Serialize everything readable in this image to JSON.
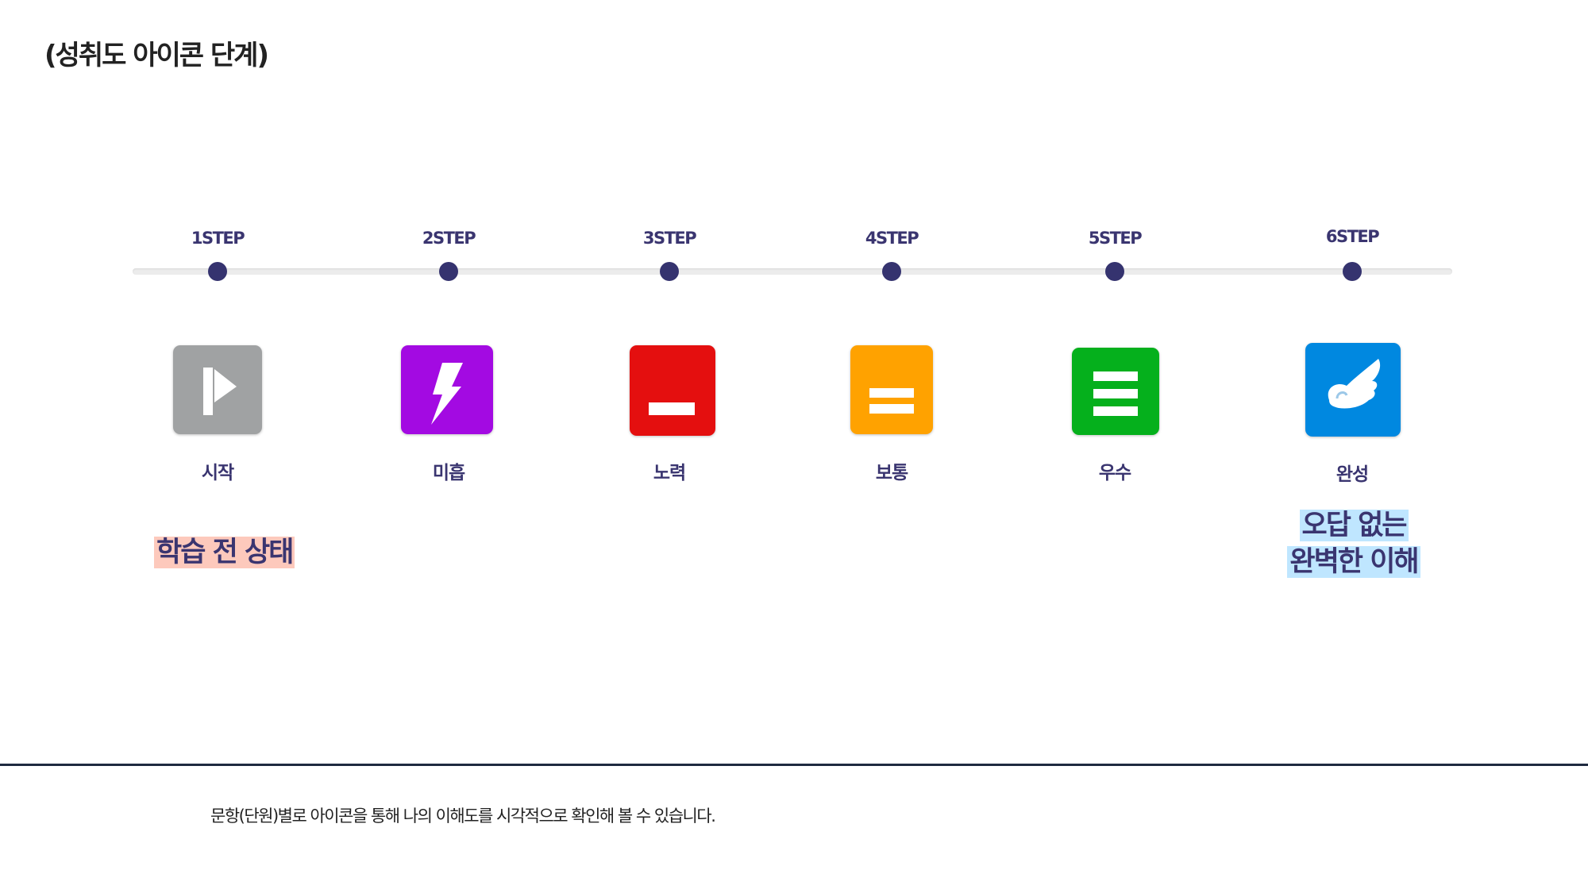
{
  "title": "(성취도 아이콘 단계)",
  "steps": [
    {
      "step": "1STEP",
      "name": "시작",
      "icon": "flag-play-icon",
      "color": "#a0a2a3"
    },
    {
      "step": "2STEP",
      "name": "미흡",
      "icon": "lightning-icon",
      "color": "#a30ae2"
    },
    {
      "step": "3STEP",
      "name": "노력",
      "icon": "single-bar-icon",
      "color": "#e40f0f"
    },
    {
      "step": "4STEP",
      "name": "보통",
      "icon": "double-bar-icon",
      "color": "#ffa200"
    },
    {
      "step": "5STEP",
      "name": "우수",
      "icon": "triple-bar-icon",
      "color": "#05b01c"
    },
    {
      "step": "6STEP",
      "name": "완성",
      "icon": "wing-icon",
      "color": "#0088e0"
    }
  ],
  "notes": {
    "start": "학습 전 상태",
    "start_highlight": "#fdc9bc",
    "complete_line1": "오답 없는",
    "complete_line2": "완벽한 이해",
    "complete_highlight": "#bfe6ff"
  },
  "footer": "문항(단원)별로 아이콘을 통해 나의 이해도를 시각적으로 확인해 볼 수 있습니다."
}
